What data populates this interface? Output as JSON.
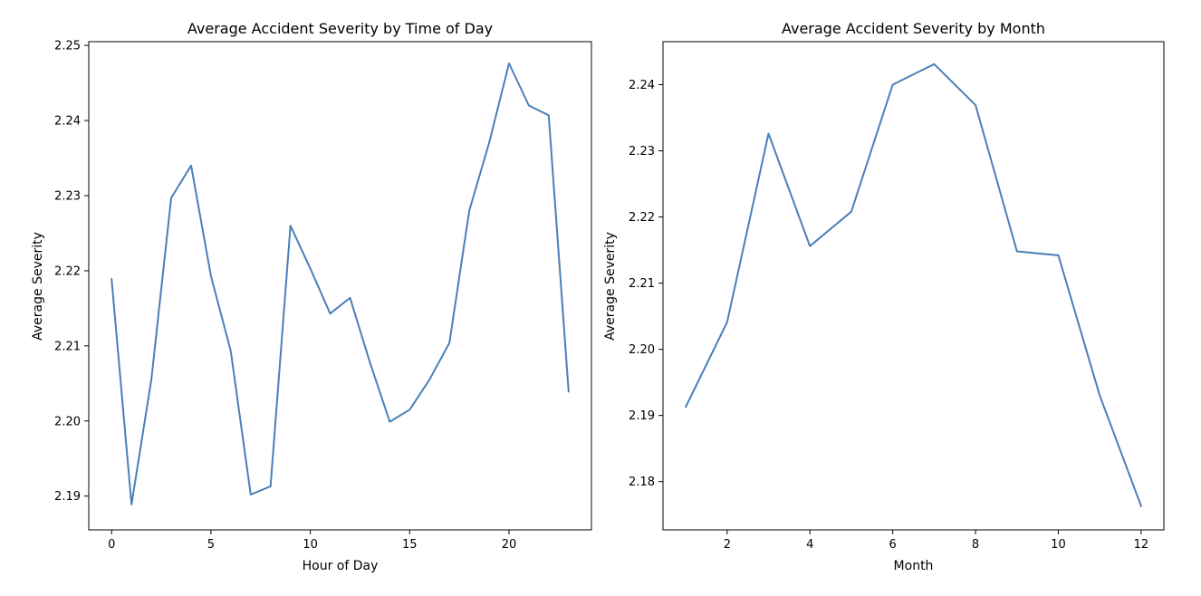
{
  "line_color": "#4a7fb8",
  "chart_data": [
    {
      "type": "line",
      "title": "Average Accident Severity by Time of Day",
      "xlabel": "Hour of Day",
      "ylabel": "Average Severity",
      "xlim": [
        -1.15,
        24.15
      ],
      "ylim": [
        2.1855,
        2.2505
      ],
      "xticks": [
        0,
        5,
        10,
        15,
        20
      ],
      "yticks": [
        2.19,
        2.2,
        2.21,
        2.22,
        2.23,
        2.24,
        2.25
      ],
      "ytick_labels": [
        "2.19",
        "2.20",
        "2.21",
        "2.22",
        "2.23",
        "2.24",
        "2.25"
      ],
      "grid": false,
      "x": [
        0,
        1,
        2,
        3,
        4,
        5,
        6,
        7,
        8,
        9,
        10,
        11,
        12,
        13,
        14,
        15,
        16,
        17,
        18,
        19,
        20,
        21,
        22,
        23
      ],
      "y": [
        2.2189,
        2.1889,
        2.2055,
        2.2297,
        2.234,
        2.2193,
        2.2093,
        2.1902,
        2.1913,
        2.226,
        2.2203,
        2.2143,
        2.2164,
        2.2078,
        2.1999,
        2.2015,
        2.2055,
        2.2104,
        2.228,
        2.237,
        2.2476,
        2.242,
        2.2407,
        2.2039
      ]
    },
    {
      "type": "line",
      "title": "Average Accident Severity by Month",
      "xlabel": "Month",
      "ylabel": "Average Severity",
      "xlim": [
        0.45,
        12.55
      ],
      "ylim": [
        2.1727,
        2.2465
      ],
      "xticks": [
        2,
        4,
        6,
        8,
        10,
        12
      ],
      "yticks": [
        2.18,
        2.19,
        2.2,
        2.21,
        2.22,
        2.23,
        2.24
      ],
      "ytick_labels": [
        "2.18",
        "2.19",
        "2.20",
        "2.21",
        "2.22",
        "2.23",
        "2.24"
      ],
      "grid": false,
      "x": [
        1,
        2,
        3,
        4,
        5,
        6,
        7,
        8,
        9,
        10,
        11,
        12
      ],
      "y": [
        2.1913,
        2.2041,
        2.2326,
        2.2156,
        2.2208,
        2.24,
        2.2431,
        2.2369,
        2.2148,
        2.2142,
        2.193,
        2.1763
      ]
    }
  ]
}
